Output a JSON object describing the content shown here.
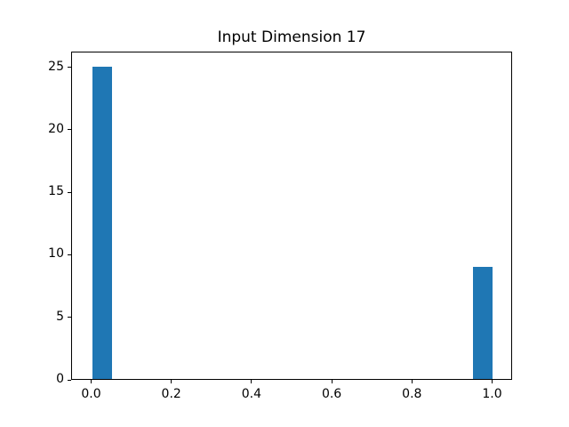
{
  "colors": {
    "bar": "#1f77b4",
    "spine": "#000000",
    "background": "#ffffff",
    "text": "#000000"
  },
  "chart_data": {
    "type": "bar",
    "subtype": "histogram",
    "title": "Input Dimension 17",
    "xlabel": "",
    "ylabel": "",
    "xlim": [
      -0.05,
      1.05
    ],
    "ylim": [
      0,
      26.25
    ],
    "grid": false,
    "legend_position": "none",
    "x_ticks": [
      {
        "label": "0.0",
        "value": 0.0
      },
      {
        "label": "0.2",
        "value": 0.2
      },
      {
        "label": "0.4",
        "value": 0.4
      },
      {
        "label": "0.6",
        "value": 0.6
      },
      {
        "label": "0.8",
        "value": 0.8
      },
      {
        "label": "1.0",
        "value": 1.0
      }
    ],
    "y_ticks": [
      {
        "label": "0",
        "value": 0
      },
      {
        "label": "5",
        "value": 5
      },
      {
        "label": "10",
        "value": 10
      },
      {
        "label": "15",
        "value": 15
      },
      {
        "label": "20",
        "value": 20
      },
      {
        "label": "25",
        "value": 25
      }
    ],
    "bars": [
      {
        "x_start": 0.0,
        "x_end": 0.05,
        "count": 25
      },
      {
        "x_start": 0.95,
        "x_end": 1.0,
        "count": 9
      }
    ]
  }
}
